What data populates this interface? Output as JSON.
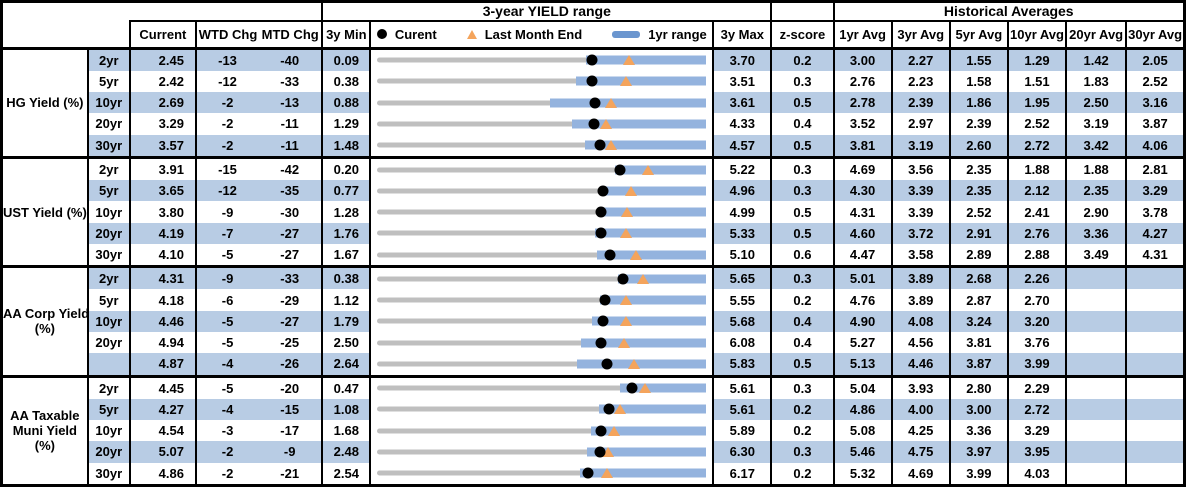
{
  "header": {
    "range_title": "3-year YIELD range",
    "historical_title": "Historical Averages",
    "current": "Current",
    "wtd": "WTD Chg",
    "mtd": "MTD Chg",
    "min_3y": "3y Min",
    "max_3y": "3y Max",
    "z_score": "z-score",
    "avg_cols": [
      "1yr Avg",
      "3yr Avg",
      "5yr Avg",
      "10yr Avg",
      "20yr Avg",
      "30yr Avg"
    ]
  },
  "legend": {
    "current": "Curent",
    "last_month_end": "Last Month End",
    "range": "1yr range"
  },
  "colors": {
    "band_blue": "#B8CCE4",
    "bar_blue": "#94B3DE",
    "track_gray": "#BFBFBF",
    "marker_black": "#000000",
    "triangle_orange": "#F4A45C",
    "legend_bar_blue": "#6B96CF",
    "border_black": "#000000"
  },
  "chart_data": {
    "type": "table",
    "title": "3-year YIELD range",
    "note": "Each row is a bullet/range chart scaled from 3y Min (left edge) to 3y Max (right edge); gray track = 3y range, blue bar = 1yr range, black dot = current, orange triangle = last month end. yr1_low/yr1_high estimated from pixels.",
    "columns": [
      "Current",
      "WTD Chg",
      "MTD Chg",
      "3y Min",
      "3y Max",
      "z-score",
      "1yr Avg",
      "3yr Avg",
      "5yr Avg",
      "10yr Avg",
      "20yr Avg",
      "30yr Avg"
    ],
    "groups": [
      {
        "label": "HG Yield (%)",
        "label_lines": [
          "HG Yield (%)"
        ],
        "rows": [
          {
            "tenor": "2yr",
            "current": "2.45",
            "wtd_chg": "-13",
            "mtd_chg": "-40",
            "min_3y": "0.09",
            "max_3y": "3.70",
            "z_score": "0.2",
            "avgs": [
              "3.00",
              "2.27",
              "1.55",
              "1.29",
              "1.42",
              "2.05"
            ],
            "range": {
              "min": 0.09,
              "max": 3.7,
              "current": 2.45,
              "last_month_end": 2.85,
              "yr1_low": 2.38,
              "yr1_high": 3.7
            }
          },
          {
            "tenor": "5yr",
            "current": "2.42",
            "wtd_chg": "-12",
            "mtd_chg": "-33",
            "min_3y": "0.38",
            "max_3y": "3.51",
            "z_score": "0.3",
            "avgs": [
              "2.76",
              "2.23",
              "1.58",
              "1.51",
              "1.83",
              "2.52"
            ],
            "range": {
              "min": 0.38,
              "max": 3.51,
              "current": 2.42,
              "last_month_end": 2.75,
              "yr1_low": 2.27,
              "yr1_high": 3.51
            }
          },
          {
            "tenor": "10yr",
            "current": "2.69",
            "wtd_chg": "-2",
            "mtd_chg": "-13",
            "min_3y": "0.88",
            "max_3y": "3.61",
            "z_score": "0.5",
            "avgs": [
              "2.78",
              "2.39",
              "1.86",
              "1.95",
              "2.50",
              "3.16"
            ],
            "range": {
              "min": 0.88,
              "max": 3.61,
              "current": 2.69,
              "last_month_end": 2.82,
              "yr1_low": 2.31,
              "yr1_high": 3.61
            }
          },
          {
            "tenor": "20yr",
            "current": "3.29",
            "wtd_chg": "-2",
            "mtd_chg": "-11",
            "min_3y": "1.29",
            "max_3y": "4.33",
            "z_score": "0.4",
            "avgs": [
              "3.52",
              "2.97",
              "2.39",
              "2.52",
              "3.19",
              "3.87"
            ],
            "range": {
              "min": 1.29,
              "max": 4.33,
              "current": 3.29,
              "last_month_end": 3.4,
              "yr1_low": 3.09,
              "yr1_high": 4.33
            }
          },
          {
            "tenor": "30yr",
            "current": "3.57",
            "wtd_chg": "-2",
            "mtd_chg": "-11",
            "min_3y": "1.48",
            "max_3y": "4.57",
            "z_score": "0.5",
            "avgs": [
              "3.81",
              "3.19",
              "2.60",
              "2.72",
              "3.42",
              "4.06"
            ],
            "range": {
              "min": 1.48,
              "max": 4.57,
              "current": 3.57,
              "last_month_end": 3.68,
              "yr1_low": 3.43,
              "yr1_high": 4.57
            }
          }
        ]
      },
      {
        "label": "UST Yield (%)",
        "label_lines": [
          "UST Yield (%)"
        ],
        "rows": [
          {
            "tenor": "2yr",
            "current": "3.91",
            "wtd_chg": "-15",
            "mtd_chg": "-42",
            "min_3y": "0.20",
            "max_3y": "5.22",
            "z_score": "0.3",
            "avgs": [
              "4.69",
              "3.56",
              "2.35",
              "1.88",
              "1.88",
              "2.81"
            ],
            "range": {
              "min": 0.2,
              "max": 5.22,
              "current": 3.91,
              "last_month_end": 4.33,
              "yr1_low": 3.83,
              "yr1_high": 5.22
            }
          },
          {
            "tenor": "5yr",
            "current": "3.65",
            "wtd_chg": "-12",
            "mtd_chg": "-35",
            "min_3y": "0.77",
            "max_3y": "4.96",
            "z_score": "0.3",
            "avgs": [
              "4.30",
              "3.39",
              "2.35",
              "2.12",
              "2.35",
              "3.29"
            ],
            "range": {
              "min": 0.77,
              "max": 4.96,
              "current": 3.65,
              "last_month_end": 4.0,
              "yr1_low": 3.62,
              "yr1_high": 4.96
            }
          },
          {
            "tenor": "10yr",
            "current": "3.80",
            "wtd_chg": "-9",
            "mtd_chg": "-30",
            "min_3y": "1.28",
            "max_3y": "4.99",
            "z_score": "0.5",
            "avgs": [
              "4.31",
              "3.39",
              "2.52",
              "2.41",
              "2.90",
              "3.78"
            ],
            "range": {
              "min": 1.28,
              "max": 4.99,
              "current": 3.8,
              "last_month_end": 4.1,
              "yr1_low": 3.79,
              "yr1_high": 4.99
            }
          },
          {
            "tenor": "20yr",
            "current": "4.19",
            "wtd_chg": "-7",
            "mtd_chg": "-27",
            "min_3y": "1.76",
            "max_3y": "5.33",
            "z_score": "0.5",
            "avgs": [
              "4.60",
              "3.72",
              "2.91",
              "2.76",
              "3.36",
              "4.27"
            ],
            "range": {
              "min": 1.76,
              "max": 5.33,
              "current": 4.19,
              "last_month_end": 4.46,
              "yr1_low": 4.12,
              "yr1_high": 5.33
            }
          },
          {
            "tenor": "30yr",
            "current": "4.10",
            "wtd_chg": "-5",
            "mtd_chg": "-27",
            "min_3y": "1.67",
            "max_3y": "5.10",
            "z_score": "0.6",
            "avgs": [
              "4.47",
              "3.58",
              "2.89",
              "2.88",
              "3.49",
              "4.31"
            ],
            "range": {
              "min": 1.67,
              "max": 5.1,
              "current": 4.1,
              "last_month_end": 4.37,
              "yr1_low": 3.96,
              "yr1_high": 5.1
            }
          }
        ]
      },
      {
        "label": "AA Corp Yield (%)",
        "label_lines": [
          "AA Corp Yield",
          "(%)"
        ],
        "rows": [
          {
            "tenor": "2yr",
            "current": "4.31",
            "wtd_chg": "-9",
            "mtd_chg": "-33",
            "min_3y": "0.38",
            "max_3y": "5.65",
            "z_score": "0.3",
            "avgs": [
              "5.01",
              "3.89",
              "2.68",
              "2.26",
              "",
              ""
            ],
            "range": {
              "min": 0.38,
              "max": 5.65,
              "current": 4.31,
              "last_month_end": 4.64,
              "yr1_low": 4.24,
              "yr1_high": 5.65
            }
          },
          {
            "tenor": "5yr",
            "current": "4.18",
            "wtd_chg": "-6",
            "mtd_chg": "-29",
            "min_3y": "1.12",
            "max_3y": "5.55",
            "z_score": "0.2",
            "avgs": [
              "4.76",
              "3.89",
              "2.87",
              "2.70",
              "",
              ""
            ],
            "range": {
              "min": 1.12,
              "max": 5.55,
              "current": 4.18,
              "last_month_end": 4.47,
              "yr1_low": 4.12,
              "yr1_high": 5.55
            }
          },
          {
            "tenor": "10yr",
            "current": "4.46",
            "wtd_chg": "-5",
            "mtd_chg": "-27",
            "min_3y": "1.79",
            "max_3y": "5.68",
            "z_score": "0.4",
            "avgs": [
              "4.90",
              "4.08",
              "3.24",
              "3.20",
              "",
              ""
            ],
            "range": {
              "min": 1.79,
              "max": 5.68,
              "current": 4.46,
              "last_month_end": 4.73,
              "yr1_low": 4.33,
              "yr1_high": 5.68
            }
          },
          {
            "tenor": "20yr",
            "current": "4.94",
            "wtd_chg": "-5",
            "mtd_chg": "-25",
            "min_3y": "2.50",
            "max_3y": "6.08",
            "z_score": "0.4",
            "avgs": [
              "5.27",
              "4.56",
              "3.81",
              "3.76",
              "",
              ""
            ],
            "range": {
              "min": 2.5,
              "max": 6.08,
              "current": 4.94,
              "last_month_end": 5.19,
              "yr1_low": 4.72,
              "yr1_high": 6.08
            }
          },
          {
            "tenor": "",
            "current": "4.87",
            "wtd_chg": "-4",
            "mtd_chg": "-26",
            "min_3y": "2.64",
            "max_3y": "5.83",
            "z_score": "0.5",
            "avgs": [
              "5.13",
              "4.46",
              "3.87",
              "3.99",
              "",
              ""
            ],
            "range": {
              "min": 2.64,
              "max": 5.83,
              "current": 4.87,
              "last_month_end": 5.13,
              "yr1_low": 4.58,
              "yr1_high": 5.83
            }
          }
        ]
      },
      {
        "label": "AA Taxable Muni Yield (%)",
        "label_lines": [
          "AA Taxable",
          "Muni Yield",
          "(%)"
        ],
        "rows": [
          {
            "tenor": "2yr",
            "current": "4.45",
            "wtd_chg": "-5",
            "mtd_chg": "-20",
            "min_3y": "0.47",
            "max_3y": "5.61",
            "z_score": "0.3",
            "avgs": [
              "5.04",
              "3.93",
              "2.80",
              "2.29",
              "",
              ""
            ],
            "range": {
              "min": 0.47,
              "max": 5.61,
              "current": 4.45,
              "last_month_end": 4.65,
              "yr1_low": 4.26,
              "yr1_high": 5.61
            }
          },
          {
            "tenor": "5yr",
            "current": "4.27",
            "wtd_chg": "-4",
            "mtd_chg": "-15",
            "min_3y": "1.08",
            "max_3y": "5.61",
            "z_score": "0.2",
            "avgs": [
              "4.86",
              "4.00",
              "3.00",
              "2.72",
              "",
              ""
            ],
            "range": {
              "min": 1.08,
              "max": 5.61,
              "current": 4.27,
              "last_month_end": 4.42,
              "yr1_low": 4.13,
              "yr1_high": 5.61
            }
          },
          {
            "tenor": "10yr",
            "current": "4.54",
            "wtd_chg": "-3",
            "mtd_chg": "-17",
            "min_3y": "1.68",
            "max_3y": "5.89",
            "z_score": "0.2",
            "avgs": [
              "5.08",
              "4.25",
              "3.36",
              "3.29",
              "",
              ""
            ],
            "range": {
              "min": 1.68,
              "max": 5.89,
              "current": 4.54,
              "last_month_end": 4.71,
              "yr1_low": 4.42,
              "yr1_high": 5.89
            }
          },
          {
            "tenor": "20yr",
            "current": "5.07",
            "wtd_chg": "-2",
            "mtd_chg": "-9",
            "min_3y": "2.48",
            "max_3y": "6.30",
            "z_score": "0.3",
            "avgs": [
              "5.46",
              "4.75",
              "3.97",
              "3.95",
              "",
              ""
            ],
            "range": {
              "min": 2.48,
              "max": 6.3,
              "current": 5.07,
              "last_month_end": 5.16,
              "yr1_low": 4.91,
              "yr1_high": 6.3
            }
          },
          {
            "tenor": "30yr",
            "current": "4.86",
            "wtd_chg": "-2",
            "mtd_chg": "-21",
            "min_3y": "2.54",
            "max_3y": "6.17",
            "z_score": "0.2",
            "avgs": [
              "5.32",
              "4.69",
              "3.99",
              "4.03",
              "",
              ""
            ],
            "range": {
              "min": 2.54,
              "max": 6.17,
              "current": 4.86,
              "last_month_end": 5.07,
              "yr1_low": 4.78,
              "yr1_high": 6.17
            }
          }
        ]
      }
    ]
  }
}
